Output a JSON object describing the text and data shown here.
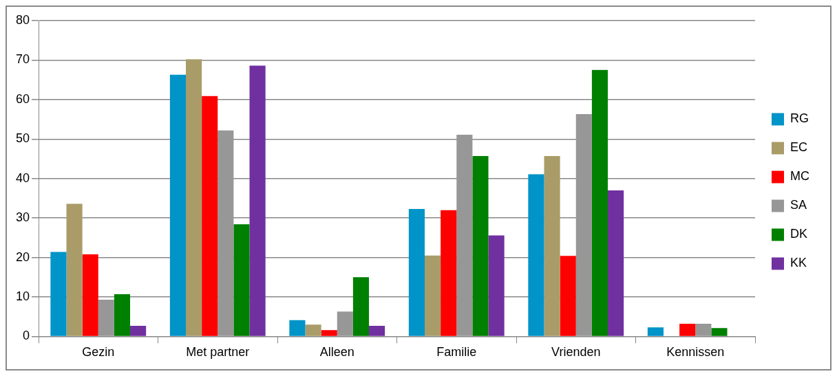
{
  "chart_data": {
    "type": "bar",
    "categories": [
      "Gezin",
      "Met partner",
      "Alleen",
      "Familie",
      "Vrienden",
      "Kennissen"
    ],
    "series": [
      {
        "name": "RG",
        "color": "#0094c8",
        "values": [
          21.4,
          66.3,
          4.1,
          32.3,
          41.1,
          2.3
        ]
      },
      {
        "name": "EC",
        "color": "#a99c68",
        "values": [
          33.6,
          70.2,
          3.0,
          20.5,
          45.7,
          0
        ]
      },
      {
        "name": "MC",
        "color": "#ff0000",
        "values": [
          20.8,
          60.9,
          1.6,
          32.0,
          20.4,
          3.2
        ]
      },
      {
        "name": "SA",
        "color": "#979797",
        "values": [
          9.3,
          52.2,
          6.3,
          51.1,
          56.3,
          3.2
        ]
      },
      {
        "name": "DK",
        "color": "#008000",
        "values": [
          10.7,
          28.4,
          15.0,
          45.7,
          67.5,
          2.1
        ]
      },
      {
        "name": "KK",
        "color": "#7030a0",
        "values": [
          2.7,
          68.6,
          2.7,
          25.6,
          37.0,
          0
        ]
      }
    ],
    "ylim": [
      0,
      80
    ],
    "yticks": [
      0,
      10,
      20,
      30,
      40,
      50,
      60,
      70,
      80
    ],
    "grid": "y",
    "legend": "right"
  }
}
